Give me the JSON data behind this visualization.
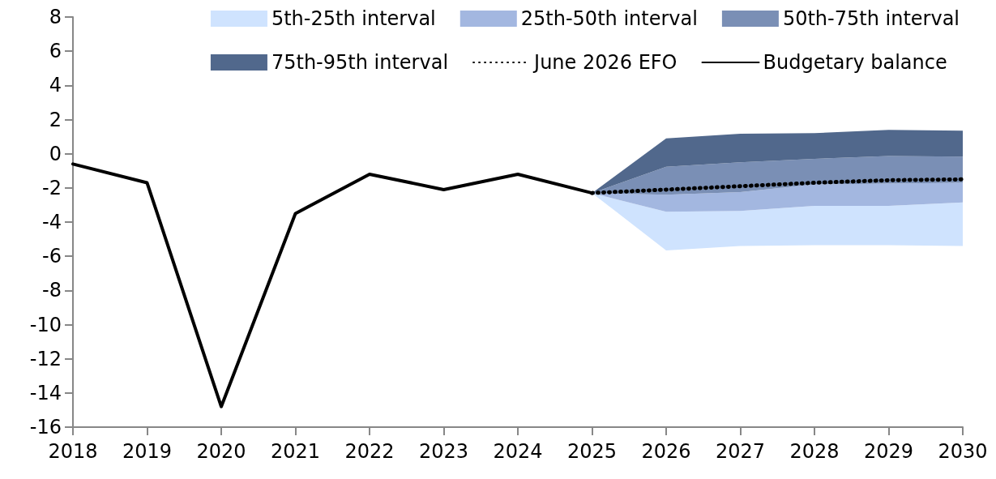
{
  "chart_data": {
    "type": "line",
    "xlim": [
      2018,
      2030
    ],
    "xticks": [
      2018,
      2019,
      2020,
      2021,
      2022,
      2023,
      2024,
      2025,
      2026,
      2027,
      2028,
      2029,
      2030
    ],
    "ylim": [
      -16,
      8
    ],
    "yticks": [
      -16,
      -14,
      -12,
      -10,
      -8,
      -6,
      -4,
      -2,
      0,
      2,
      4,
      6,
      8
    ],
    "grid": false,
    "legend": "top right",
    "series": [
      {
        "name": "5th-25th interval",
        "type": "line",
        "color": "#cfe3fe",
        "x": [
          2025,
          2026,
          2027,
          2028,
          2029,
          2030
        ],
        "values": [
          null,
          null,
          null,
          null,
          null,
          null
        ],
        "lower": [
          -2.3,
          -5.66,
          -5.4,
          -5.35,
          -5.35,
          -5.4
        ],
        "upper": [
          -2.3,
          -3.4,
          -3.35,
          -3.05,
          -3.05,
          -2.85
        ]
      },
      {
        "name": "25th-50th interval",
        "type": "line",
        "color": "#a3b7e0",
        "x": [
          2025,
          2026,
          2027,
          2028,
          2029,
          2030
        ],
        "values": [
          null,
          null,
          null,
          null,
          null,
          null
        ],
        "lower": [
          -2.3,
          -3.4,
          -3.35,
          -3.05,
          -3.05,
          -2.85
        ],
        "upper": [
          -2.3,
          -2.4,
          -2.25,
          -1.8,
          -1.75,
          -1.7
        ]
      },
      {
        "name": "50th-75th interval",
        "type": "line",
        "color": "#7a8fb5",
        "x": [
          2025,
          2026,
          2027,
          2028,
          2029,
          2030
        ],
        "values": [
          null,
          null,
          null,
          null,
          null,
          null
        ],
        "lower": [
          -2.3,
          -2.4,
          -2.25,
          -1.8,
          -1.75,
          -1.7
        ],
        "upper": [
          -2.3,
          -0.76,
          -0.5,
          -0.3,
          -0.13,
          -0.17
        ]
      },
      {
        "name": "75th-95th interval",
        "type": "line",
        "color": "#51688c",
        "x": [
          2025,
          2026,
          2027,
          2028,
          2029,
          2030
        ],
        "values": [
          null,
          null,
          null,
          null,
          null,
          null
        ],
        "lower": [
          -2.3,
          -0.76,
          -0.5,
          -0.3,
          -0.13,
          -0.17
        ],
        "upper": [
          -2.3,
          0.9,
          1.17,
          1.2,
          1.4,
          1.35
        ]
      },
      {
        "name": "June 2026 EFO",
        "type": "line",
        "color": "#000000",
        "line_style": "dotted",
        "x": [
          2025,
          2026,
          2027,
          2028,
          2029,
          2030
        ],
        "values": [
          -2.3,
          -2.1,
          -1.9,
          -1.7,
          -1.55,
          -1.5
        ]
      },
      {
        "name": "Budgetary balance",
        "type": "line",
        "color": "#000000",
        "line_style": "solid",
        "x": [
          2018,
          2019,
          2020,
          2021,
          2022,
          2023,
          2024,
          2025
        ],
        "values": [
          -0.6,
          -1.7,
          -14.8,
          -3.5,
          -1.2,
          -2.1,
          -1.2,
          -2.3
        ]
      }
    ]
  }
}
